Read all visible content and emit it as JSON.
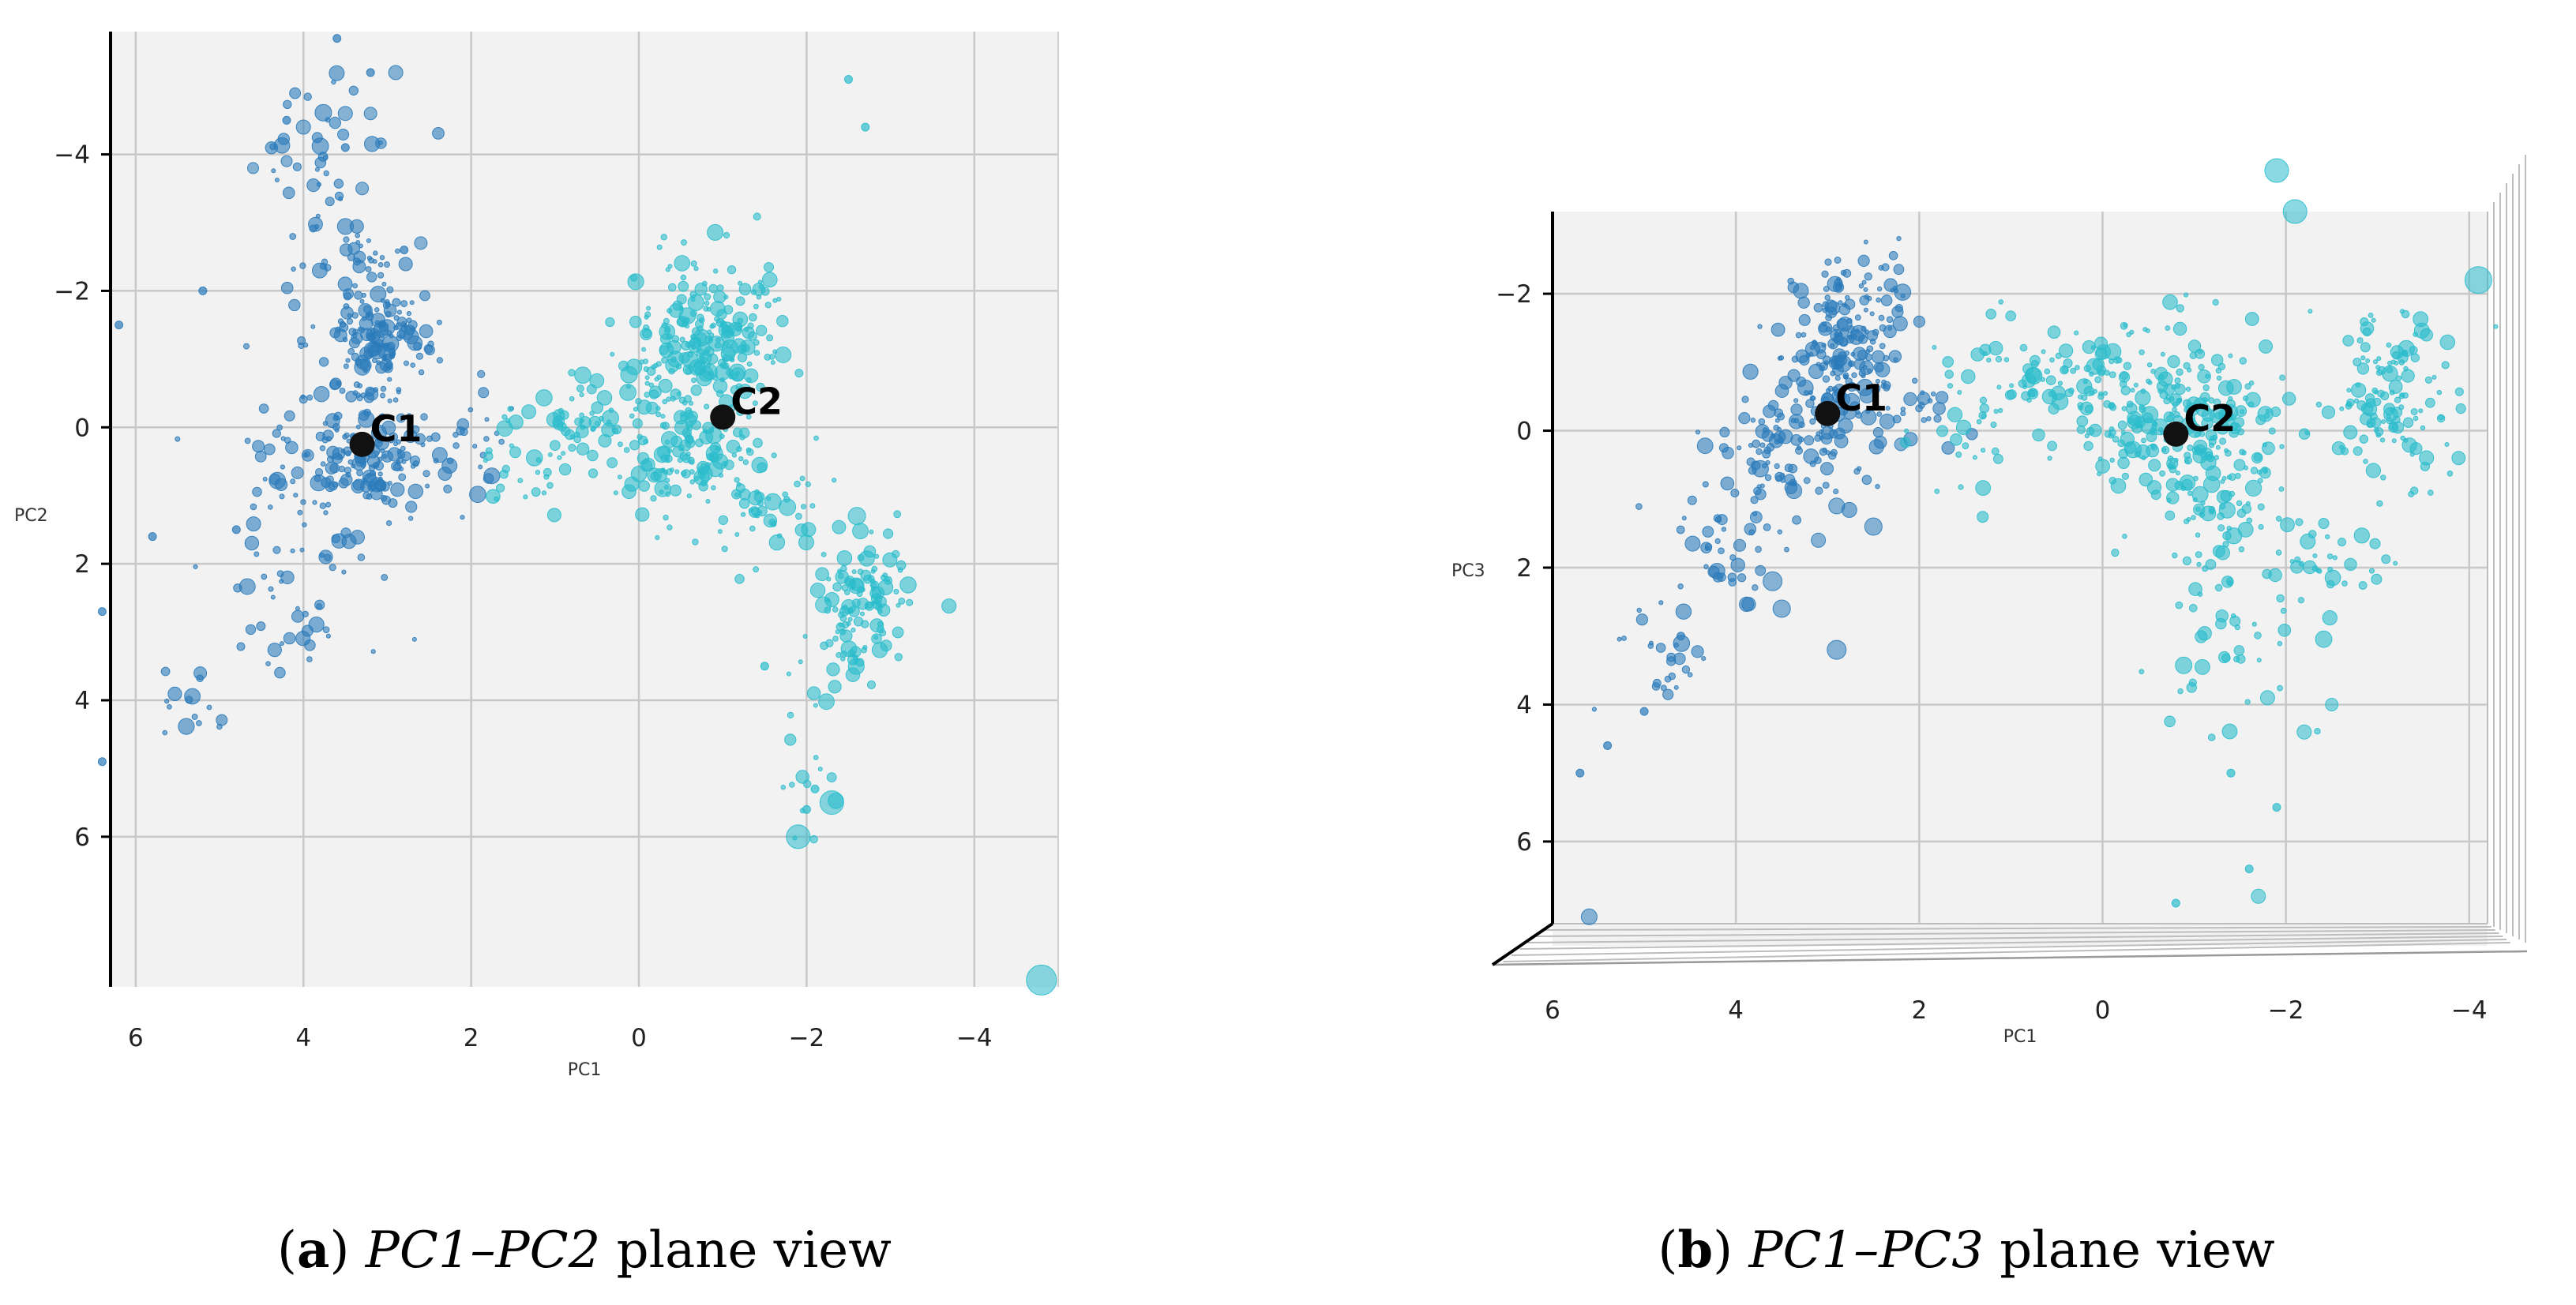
{
  "chart_data": [
    {
      "type": "scatter",
      "panel": "a",
      "caption": {
        "letter": "a",
        "pc_a": "PC1",
        "dash": "–",
        "pc_b": "PC2",
        "rest": " plane view"
      },
      "xlabel": "PC1",
      "ylabel": "PC2",
      "xlim": [
        6.3,
        -5.0
      ],
      "ylim": [
        -5.8,
        8.2
      ],
      "x_ticks": [
        "6",
        "4",
        "2",
        "0",
        "−2",
        "−4"
      ],
      "y_ticks": [
        "−4",
        "−2",
        "0",
        "2",
        "4",
        "6"
      ],
      "grid": true,
      "series": [
        {
          "cluster": "C1",
          "color": "#2b7bba",
          "clusters": [
            {
              "center": [
                3.1,
                -1.3
              ],
              "spread": [
                0.35,
                0.45
              ],
              "count": 150
            },
            {
              "center": [
                3.0,
                0.5
              ],
              "spread": [
                0.35,
                0.4
              ],
              "count": 110
            },
            {
              "center": [
                3.7,
                0.4
              ],
              "spread": [
                0.55,
                0.6
              ],
              "count": 80
            },
            {
              "center": [
                4.1,
                2.5
              ],
              "spread": [
                0.5,
                0.6
              ],
              "count": 45
            },
            {
              "center": [
                3.8,
                -3.8
              ],
              "spread": [
                0.35,
                0.6
              ],
              "count": 40
            },
            {
              "center": [
                3.3,
                -2.5
              ],
              "spread": [
                0.35,
                0.4
              ],
              "count": 30
            },
            {
              "center": [
                1.8,
                0.2
              ],
              "spread": [
                0.3,
                0.4
              ],
              "count": 18
            },
            {
              "center": [
                5.3,
                4.1
              ],
              "spread": [
                0.3,
                0.25
              ],
              "count": 15
            }
          ],
          "extra": [
            [
              6.2,
              -1.5
            ],
            [
              5.2,
              -2.0
            ],
            [
              3.6,
              -5.7
            ],
            [
              3.2,
              -5.2
            ],
            [
              4.2,
              -4.5
            ],
            [
              3.5,
              -4.1
            ],
            [
              2.8,
              -2.6
            ],
            [
              4.8,
              1.5
            ],
            [
              5.8,
              1.6
            ],
            [
              6.4,
              2.7
            ],
            [
              6.4,
              4.9
            ]
          ],
          "big": [
            [
              4.0,
              -4.4,
              9
            ],
            [
              3.5,
              -4.6,
              9
            ],
            [
              2.9,
              -5.2,
              9
            ],
            [
              3.2,
              -4.6,
              8
            ],
            [
              2.6,
              -2.7,
              8
            ],
            [
              3.3,
              -3.5,
              8
            ],
            [
              4.2,
              -3.9,
              7
            ],
            [
              4.6,
              -3.8,
              7
            ]
          ]
        },
        {
          "cluster": "C2",
          "color": "#2bbccc",
          "clusters": [
            {
              "center": [
                -0.9,
                -1.4
              ],
              "spread": [
                0.45,
                0.5
              ],
              "count": 190
            },
            {
              "center": [
                -0.7,
                0.5
              ],
              "spread": [
                0.45,
                0.45
              ],
              "count": 130
            },
            {
              "center": [
                -0.3,
                -0.7
              ],
              "spread": [
                0.4,
                0.45
              ],
              "count": 60
            },
            {
              "center": [
                -2.7,
                2.3
              ],
              "spread": [
                0.3,
                0.35
              ],
              "count": 85
            },
            {
              "center": [
                -2.5,
                3.1
              ],
              "spread": [
                0.25,
                0.3
              ],
              "count": 40
            },
            {
              "center": [
                0.7,
                0.1
              ],
              "spread": [
                0.5,
                0.35
              ],
              "count": 70
            },
            {
              "center": [
                -1.6,
                1.2
              ],
              "spread": [
                0.3,
                0.3
              ],
              "count": 35
            },
            {
              "center": [
                -2.1,
                4.8
              ],
              "spread": [
                0.2,
                0.8
              ],
              "count": 20
            },
            {
              "center": [
                1.4,
                0.7
              ],
              "spread": [
                0.3,
                0.3
              ],
              "count": 18
            }
          ],
          "extra": [
            [
              -2.5,
              -5.1
            ],
            [
              -2.7,
              -4.4
            ],
            [
              -1.5,
              3.5
            ],
            [
              -2.1,
              5.3
            ],
            [
              -2.0,
              5.6
            ]
          ],
          "big": [
            [
              -1.9,
              6.0,
              15
            ],
            [
              -2.3,
              5.5,
              15
            ],
            [
              -4.8,
              8.1,
              19
            ],
            [
              -2.6,
              1.3,
              11
            ],
            [
              -2.2,
              2.6,
              10
            ]
          ]
        }
      ],
      "centroids": [
        {
          "label": "C1",
          "x": 3.3,
          "y": 0.25
        },
        {
          "label": "C2",
          "x": -1.0,
          "y": -0.15
        }
      ]
    },
    {
      "type": "scatter",
      "panel": "b",
      "caption": {
        "letter": "b",
        "pc_a": "PC1",
        "dash": "–",
        "pc_b": "PC3",
        "rest": " plane view"
      },
      "xlabel": "PC1",
      "ylabel": "PC3",
      "xlim": [
        6.0,
        -4.2
      ],
      "ylim": [
        -3.2,
        7.2
      ],
      "x_ticks": [
        "6",
        "4",
        "2",
        "0",
        "−2",
        "−4"
      ],
      "y_ticks": [
        "6",
        "4",
        "2",
        "0",
        "−2"
      ],
      "grid": true,
      "series": [
        {
          "cluster": "C1",
          "color": "#2b7bba",
          "clusters": [
            {
              "center": [
                2.9,
                -0.9
              ],
              "spread": [
                0.3,
                0.6
              ],
              "count": 160
            },
            {
              "center": [
                2.7,
                -1.9
              ],
              "spread": [
                0.3,
                0.45
              ],
              "count": 70
            },
            {
              "center": [
                3.5,
                0.3
              ],
              "spread": [
                0.35,
                0.4
              ],
              "count": 80
            },
            {
              "center": [
                4.1,
                1.6
              ],
              "spread": [
                0.35,
                0.6
              ],
              "count": 45
            },
            {
              "center": [
                4.8,
                3.2
              ],
              "spread": [
                0.3,
                0.5
              ],
              "count": 25
            },
            {
              "center": [
                2.0,
                -0.3
              ],
              "spread": [
                0.3,
                0.3
              ],
              "count": 22
            }
          ],
          "extra": [
            [
              5.7,
              5.0
            ],
            [
              5.0,
              4.1
            ],
            [
              5.4,
              4.6
            ],
            [
              4.6,
              3.0
            ]
          ],
          "big": [
            [
              5.6,
              7.1,
              10
            ],
            [
              2.9,
              3.2,
              12
            ],
            [
              3.6,
              2.2,
              12
            ],
            [
              3.5,
              2.6,
              11
            ],
            [
              2.9,
              1.1,
              10
            ],
            [
              2.5,
              1.4,
              11
            ],
            [
              3.1,
              1.6,
              9
            ],
            [
              2.2,
              0.2,
              8
            ]
          ]
        },
        {
          "cluster": "C2",
          "color": "#2bbccc",
          "clusters": [
            {
              "center": [
                -0.8,
                -0.2
              ],
              "spread": [
                0.55,
                0.6
              ],
              "count": 230
            },
            {
              "center": [
                -3.1,
                -0.5
              ],
              "spread": [
                0.35,
                0.6
              ],
              "count": 130
            },
            {
              "center": [
                -1.3,
                0.9
              ],
              "spread": [
                0.35,
                0.6
              ],
              "count": 70
            },
            {
              "center": [
                0.5,
                -0.8
              ],
              "spread": [
                0.55,
                0.35
              ],
              "count": 90
            },
            {
              "center": [
                -1.5,
                2.9
              ],
              "spread": [
                0.45,
                0.9
              ],
              "count": 50
            },
            {
              "center": [
                1.5,
                0.1
              ],
              "spread": [
                0.4,
                0.45
              ],
              "count": 25
            },
            {
              "center": [
                -2.5,
                1.8
              ],
              "spread": [
                0.3,
                0.4
              ],
              "count": 30
            }
          ],
          "extra": [
            [
              -0.8,
              6.9
            ],
            [
              -1.6,
              6.4
            ],
            [
              -1.4,
              5.0
            ],
            [
              -1.9,
              5.5
            ]
          ],
          "big": [
            [
              -1.7,
              6.8,
              9
            ],
            [
              -4.1,
              -2.2,
              17
            ],
            [
              -2.1,
              -3.2,
              15
            ],
            [
              -1.9,
              -3.8,
              15
            ],
            [
              -2.2,
              4.4,
              9
            ],
            [
              -1.8,
              3.9,
              9
            ],
            [
              -2.5,
              4.0,
              8
            ]
          ]
        }
      ],
      "centroids": [
        {
          "label": "C1",
          "x": 3.0,
          "y": -0.25
        },
        {
          "label": "C2",
          "x": -0.8,
          "y": 0.05
        }
      ]
    }
  ]
}
